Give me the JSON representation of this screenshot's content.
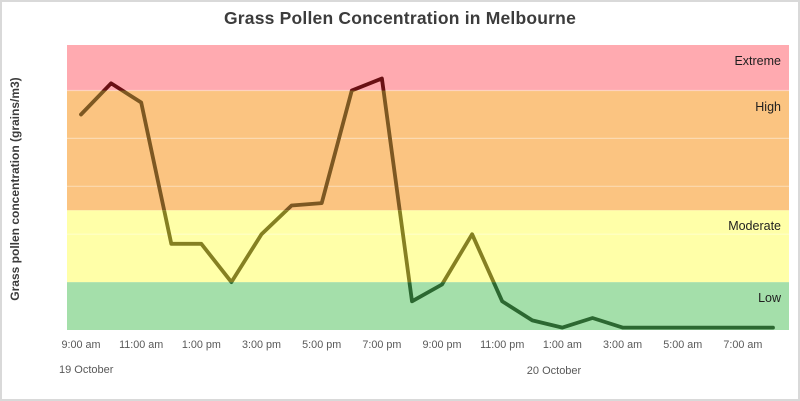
{
  "window": {
    "background": "#ffffff",
    "border_color": "#d9d9d9"
  },
  "chart_data": {
    "type": "line",
    "title": "Grass Pollen Concentration in Melbourne",
    "ylabel": "Grass pollen concentration (grains/m3)",
    "xlabel": "",
    "x_tick_labels": [
      "9:00 am",
      "11:00 am",
      "1:00 pm",
      "3:00 pm",
      "5:00 pm",
      "7:00 pm",
      "9:00 pm",
      "11:00 pm",
      "1:00 am",
      "3:00 am",
      "5:00 am",
      "7:00 am"
    ],
    "date_labels": [
      "19 October",
      "20 October"
    ],
    "series": [
      {
        "name": "Grass pollen concentration (grains/m3)",
        "x": [
          "9:00 am",
          "10:00 am",
          "11:00 am",
          "12:00 pm",
          "1:00 pm",
          "2:00 pm",
          "3:00 pm",
          "4:00 pm",
          "5:00 pm",
          "6:00 pm",
          "7:00 pm",
          "8:00 pm",
          "9:00 pm",
          "10:00 pm",
          "11:00 pm",
          "12:00 am",
          "1:00 am",
          "2:00 am",
          "3:00 am",
          "4:00 am",
          "5:00 am",
          "6:00 am",
          "7:00 am",
          "8:00 am"
        ],
        "values": [
          90,
          103,
          95,
          36,
          36,
          20,
          40,
          52,
          53,
          100,
          105,
          12,
          19,
          40,
          12,
          4,
          1,
          5,
          1,
          1,
          1,
          1,
          1,
          1
        ]
      }
    ],
    "ylim": [
      0,
      119
    ],
    "gridline_values": [
      40,
      60,
      80,
      100
    ],
    "grid": "faint white horizontal lines every 20 units",
    "legend_position": "band labels right-aligned inside plot area",
    "bands": [
      {
        "label": "Low",
        "min": 0,
        "max": 20,
        "fill": "#a4dfaa",
        "line_color": "#2c6831"
      },
      {
        "label": "Moderate",
        "min": 20,
        "max": 50,
        "fill": "#ffffa8",
        "line_color": "#858022"
      },
      {
        "label": "High",
        "min": 50,
        "max": 100,
        "fill": "#fbc481",
        "line_color": "#7d5822"
      },
      {
        "label": "Extreme",
        "min": 100,
        "max": 119,
        "fill": "#ffaab0",
        "line_color": "#6a1014"
      }
    ],
    "axis_text_color": "#595959",
    "title_color": "#3c3c3c",
    "band_label_color": "#1f1f1f",
    "line_width": 3.8
  }
}
